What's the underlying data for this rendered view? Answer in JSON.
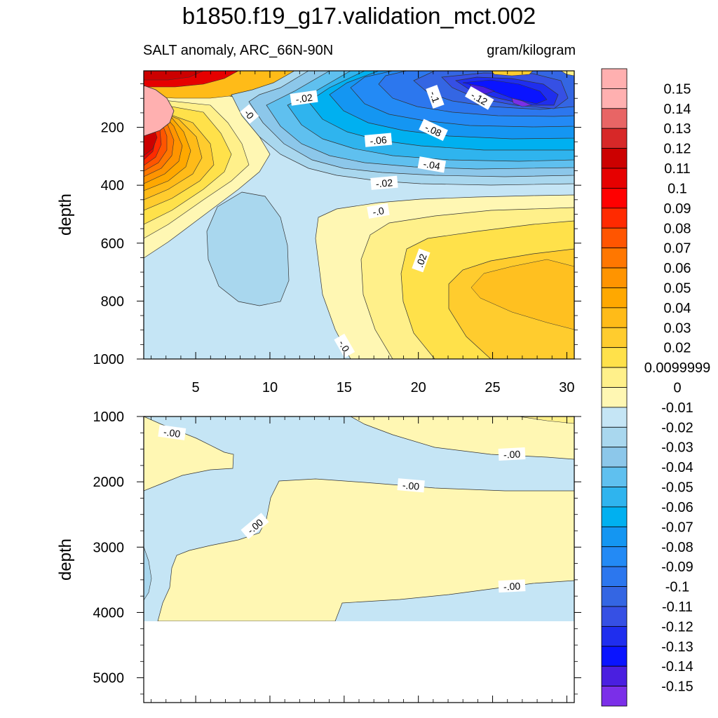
{
  "title": "b1850.f19_g17.validation_mct.002",
  "subtitle_left": "SALT anomaly, ARC_66N-90N",
  "subtitle_right": "gram/kilogram",
  "colorbar": {
    "labels": [
      "0.15",
      "0.14",
      "0.13",
      "0.12",
      "0.11",
      "0.1",
      "0.09",
      "0.08",
      "0.07",
      "0.06",
      "0.05",
      "0.04",
      "0.03",
      "0.02",
      "0.0099999",
      "0",
      "-0.01",
      "-0.02",
      "-0.03",
      "-0.04",
      "-0.05",
      "-0.06",
      "-0.07",
      "-0.08",
      "-0.09",
      "-0.1",
      "-0.11",
      "-0.12",
      "-0.13",
      "-0.14",
      "-0.15"
    ],
    "colors": [
      "#ffb0b0",
      "#e86565",
      "#d72828",
      "#cc0000",
      "#e60000",
      "#ff0000",
      "#ff2a00",
      "#ff5500",
      "#ff7700",
      "#ff9400",
      "#ffa800",
      "#ffbb18",
      "#ffcc2e",
      "#ffe14a",
      "#fff08a",
      "#fff7b3",
      "#c5e5f5",
      "#a9d7ee",
      "#8cc7ea",
      "#5fc0ef",
      "#2fb4ee",
      "#00b0f0",
      "#1496f2",
      "#238af5",
      "#2c77ee",
      "#3466e3",
      "#3650e4",
      "#1f2eee",
      "#0a14ff",
      "#4a1fe0",
      "#7b2fe8"
    ]
  },
  "chart_data": [
    {
      "type": "heatmap",
      "panel": "upper",
      "title": "SALT anomaly, ARC_66N-90N",
      "units": "gram/kilogram",
      "xlabel": "",
      "ylabel": "depth",
      "xlim": [
        1.5,
        30.5
      ],
      "ylim": [
        1000,
        5
      ],
      "y_reversed": true,
      "xticks": [
        5,
        10,
        15,
        20,
        25,
        30
      ],
      "yticks": [
        200,
        400,
        600,
        800,
        1000
      ],
      "contour_labels": [
        {
          "text": "-.02",
          "x": 12.3,
          "y": 100
        },
        {
          "text": "-0",
          "x": 8.6,
          "y": 155
        },
        {
          "text": "-.1",
          "x": 21.1,
          "y": 95
        },
        {
          "text": "-.12",
          "x": 24.1,
          "y": 100
        },
        {
          "text": "-.08",
          "x": 21.0,
          "y": 210
        },
        {
          "text": "-.06",
          "x": 17.3,
          "y": 245
        },
        {
          "text": "-.04",
          "x": 20.9,
          "y": 330
        },
        {
          "text": "-.02",
          "x": 17.7,
          "y": 393
        },
        {
          "text": "-.0",
          "x": 17.3,
          "y": 490
        },
        {
          "text": ".02",
          "x": 20.2,
          "y": 660
        },
        {
          "text": "-.0",
          "x": 15.0,
          "y": 955
        }
      ],
      "features": [
        {
          "region": "upper-left, depth 0-300, x 1.5-8",
          "value_range": [
            0.02,
            0.15
          ],
          "note": "strong positive maximum near x=2, depth 120-180"
        },
        {
          "region": "upper-right, depth 5-400, x 12-30.5",
          "value_range": [
            -0.15,
            -0.02
          ],
          "note": "negative minimum near x=27, depth 100-150"
        },
        {
          "region": "middle-left, depth 300-1000, x 1.5-15",
          "value_range": [
            -0.02,
            0.0
          ],
          "note": "weak negative, local minimum near x=8, depth 600"
        },
        {
          "region": "lower-right, depth 450-1000, x 15-30.5",
          "value_range": [
            0.0,
            0.04
          ],
          "note": "positive maximum near x=27, depth 730"
        }
      ]
    },
    {
      "type": "heatmap",
      "panel": "lower",
      "xlabel": "",
      "ylabel": "depth",
      "xlim": [
        1.5,
        30.5
      ],
      "ylim": [
        5380,
        1000
      ],
      "y_reversed": true,
      "data_bottom": 4120,
      "xticks": [
        5,
        10,
        15,
        20,
        25,
        30
      ],
      "yticks": [
        1000,
        2000,
        3000,
        4000,
        5000
      ],
      "contour_labels": [
        {
          "text": "-.00",
          "x": 3.4,
          "y": 1250
        },
        {
          "text": "-.00",
          "x": 26.3,
          "y": 1580
        },
        {
          "text": "-.00",
          "x": 19.5,
          "y": 2060
        },
        {
          "text": "-.00",
          "x": 9.0,
          "y": 2680
        },
        {
          "text": "-.00",
          "x": 26.3,
          "y": 3600
        }
      ],
      "features": [
        {
          "region": "depth 1000-4120, mostly",
          "value_range": [
            -0.01,
            0.01
          ],
          "note": "near-zero anomaly, alternating slight positive and slight negative bands"
        }
      ]
    }
  ]
}
